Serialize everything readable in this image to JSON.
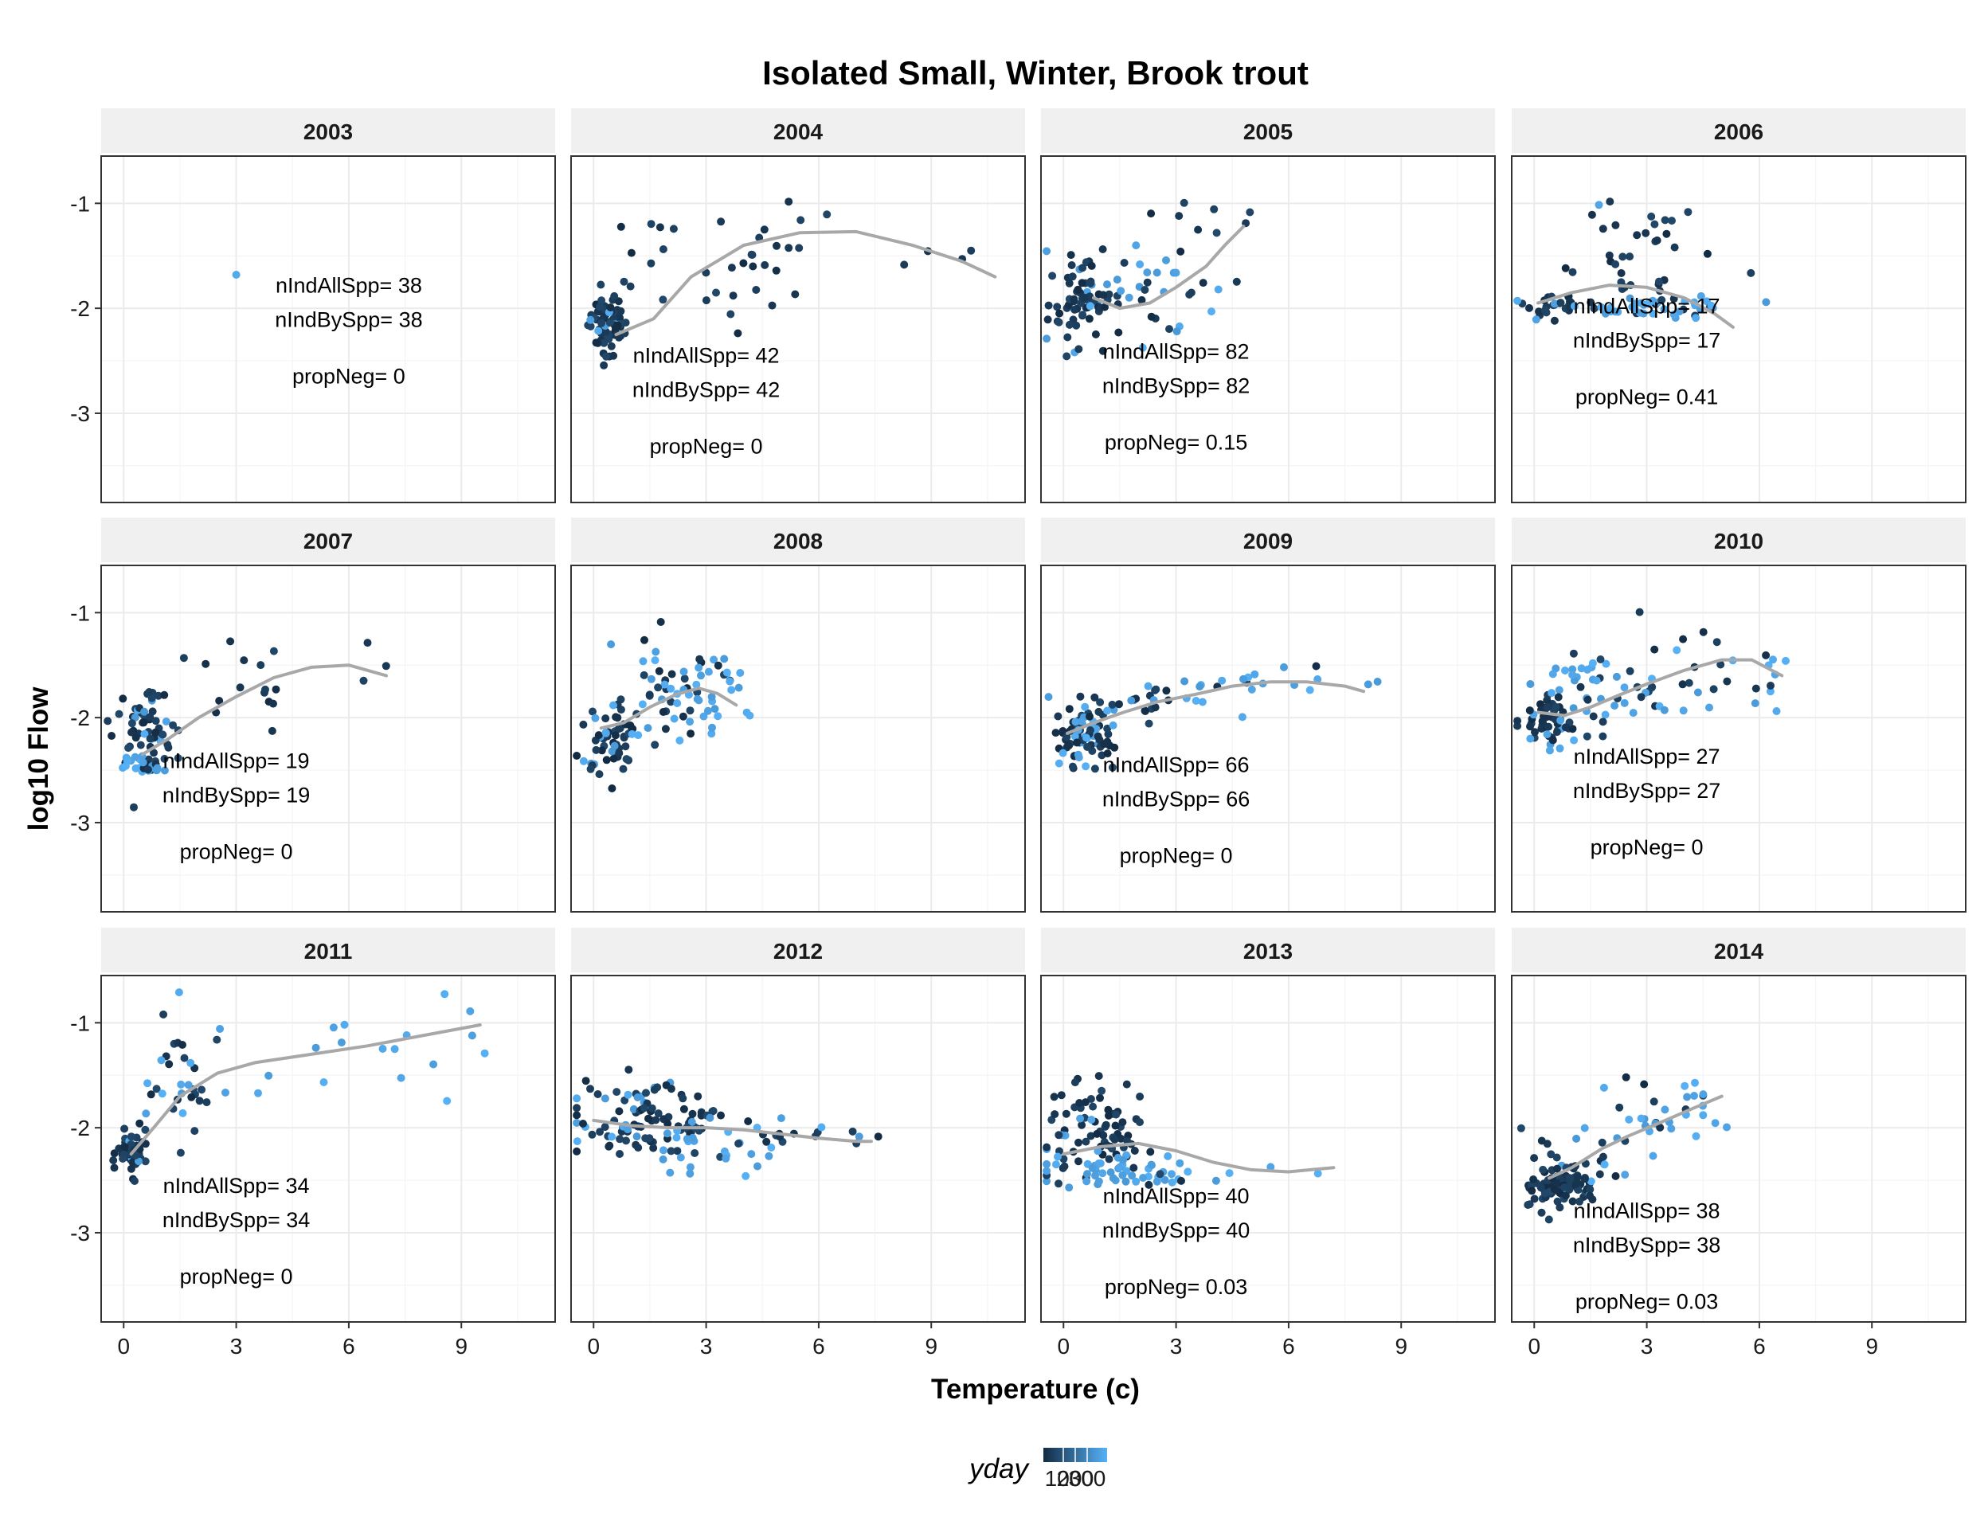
{
  "chart_data": {
    "type": "scatter",
    "title": "Isolated Small, Winter, Brook trout",
    "xlabel": "Temperature (c)",
    "ylabel": "log10 Flow",
    "xlim": [
      -0.6,
      11.5
    ],
    "ylim": [
      -3.85,
      -0.55
    ],
    "x_ticks": [
      0,
      3,
      6,
      9
    ],
    "y_ticks": [
      -1,
      -2,
      -3
    ],
    "grid": true,
    "legend": {
      "title": "yday",
      "placement": "bottom",
      "tick_labels": [
        "100",
        "200",
        "300"
      ],
      "low_color": "#132B43",
      "high_color": "#56B1F7"
    },
    "colors": {
      "point_dark": "#132B43",
      "point_light": "#56B1F7",
      "smooth": "#A8A8A8",
      "strip_bg": "#F0F0F0",
      "panel_border": "#333333",
      "grid": "#EBEBEB"
    },
    "panels": [
      {
        "year": "2003",
        "labels": [
          "nIndAllSpp= 38",
          "nIndBySpp= 38",
          "propNeg= 0"
        ],
        "label_x": 6.0,
        "label_y": -1.85,
        "clusters": [
          {
            "cx": 3.0,
            "cy": -1.68,
            "sx": 0,
            "sy": 0,
            "n": 1,
            "p": 1
          }
        ],
        "smooth": []
      },
      {
        "year": "2004",
        "labels": [
          "nIndAllSpp= 42",
          "nIndBySpp= 42",
          "propNeg= 0"
        ],
        "label_x": 3.0,
        "label_y": -2.52,
        "clusters": [
          {
            "cx": 0.35,
            "cy": -2.15,
            "sx": 0.25,
            "sy": 0.15,
            "n": 70,
            "p": 0.05
          },
          {
            "cx": 3.5,
            "cy": -1.55,
            "sx": 1.8,
            "sy": 0.3,
            "n": 35,
            "p": 0.05
          },
          {
            "cx": 9.8,
            "cy": -1.5,
            "sx": 0.7,
            "sy": 0.1,
            "n": 4,
            "p": 0
          }
        ],
        "smooth": [
          [
            0.6,
            -2.25
          ],
          [
            1.6,
            -2.1
          ],
          [
            2.6,
            -1.7
          ],
          [
            4.0,
            -1.4
          ],
          [
            5.5,
            -1.28
          ],
          [
            7.0,
            -1.27
          ],
          [
            8.5,
            -1.4
          ],
          [
            9.8,
            -1.55
          ],
          [
            10.7,
            -1.7
          ]
        ]
      },
      {
        "year": "2005",
        "labels": [
          "nIndAllSpp= 82",
          "nIndBySpp= 82",
          "propNeg= 0.15"
        ],
        "label_x": 3.0,
        "label_y": -2.48,
        "clusters": [
          {
            "cx": 0.6,
            "cy": -1.95,
            "sx": 0.5,
            "sy": 0.22,
            "n": 70,
            "p": 0.1
          },
          {
            "cx": 2.5,
            "cy": -1.85,
            "sx": 1.0,
            "sy": 0.2,
            "n": 30,
            "p": 0.6
          },
          {
            "cx": 3.6,
            "cy": -1.25,
            "sx": 0.7,
            "sy": 0.25,
            "n": 10,
            "p": 0.1
          }
        ],
        "smooth": [
          [
            0.8,
            -1.9
          ],
          [
            1.5,
            -2.0
          ],
          [
            2.3,
            -1.95
          ],
          [
            3.0,
            -1.8
          ],
          [
            3.8,
            -1.6
          ],
          [
            4.3,
            -1.4
          ],
          [
            4.8,
            -1.22
          ]
        ]
      },
      {
        "year": "2006",
        "labels": [
          "nIndAllSpp= 17",
          "nIndBySpp= 17",
          "propNeg= 0.41"
        ],
        "label_x": 3.0,
        "label_y": -2.05,
        "clusters": [
          {
            "cx": 0.5,
            "cy": -1.95,
            "sx": 0.4,
            "sy": 0.08,
            "n": 25,
            "p": 0.2
          },
          {
            "cx": 2.5,
            "cy": -1.55,
            "sx": 1.0,
            "sy": 0.3,
            "n": 40,
            "p": 0.1
          },
          {
            "cx": 3.0,
            "cy": -1.98,
            "sx": 1.3,
            "sy": 0.05,
            "n": 40,
            "p": 0.9
          }
        ],
        "smooth": [
          [
            0.1,
            -1.95
          ],
          [
            1.0,
            -1.85
          ],
          [
            2.0,
            -1.78
          ],
          [
            3.0,
            -1.8
          ],
          [
            4.0,
            -1.9
          ],
          [
            4.8,
            -2.05
          ],
          [
            5.3,
            -2.18
          ]
        ]
      },
      {
        "year": "2007",
        "labels": [
          "nIndAllSpp= 19",
          "nIndBySpp= 19",
          "propNeg= 0"
        ],
        "label_x": 3.0,
        "label_y": -2.48,
        "clusters": [
          {
            "cx": 0.5,
            "cy": -2.05,
            "sx": 0.4,
            "sy": 0.2,
            "n": 60,
            "p": 0.1
          },
          {
            "cx": 0.6,
            "cy": -2.48,
            "sx": 0.3,
            "sy": 0.06,
            "n": 25,
            "p": 0.9
          },
          {
            "cx": 3.5,
            "cy": -1.7,
            "sx": 1.2,
            "sy": 0.25,
            "n": 15,
            "p": 0.05
          },
          {
            "cx": 6.5,
            "cy": -1.5,
            "sx": 0.4,
            "sy": 0.1,
            "n": 3,
            "p": 0
          }
        ],
        "smooth": [
          [
            0.5,
            -2.35
          ],
          [
            1.2,
            -2.2
          ],
          [
            2.0,
            -2.0
          ],
          [
            3.0,
            -1.8
          ],
          [
            4.0,
            -1.62
          ],
          [
            5.0,
            -1.52
          ],
          [
            6.0,
            -1.5
          ],
          [
            7.0,
            -1.6
          ]
        ]
      },
      {
        "year": "2008",
        "labels": [],
        "label_x": 0,
        "label_y": 0,
        "clusters": [
          {
            "cx": 0.5,
            "cy": -2.15,
            "sx": 0.4,
            "sy": 0.18,
            "n": 60,
            "p": 0.15
          },
          {
            "cx": 2.0,
            "cy": -1.75,
            "sx": 0.8,
            "sy": 0.28,
            "n": 45,
            "p": 0.4
          },
          {
            "cx": 3.2,
            "cy": -1.85,
            "sx": 0.5,
            "sy": 0.2,
            "n": 25,
            "p": 0.8
          }
        ],
        "smooth": [
          [
            0.2,
            -2.1
          ],
          [
            0.8,
            -2.05
          ],
          [
            1.5,
            -1.9
          ],
          [
            2.2,
            -1.78
          ],
          [
            2.8,
            -1.72
          ],
          [
            3.3,
            -1.77
          ],
          [
            3.8,
            -1.88
          ]
        ]
      },
      {
        "year": "2009",
        "labels": [
          "nIndAllSpp= 66",
          "nIndBySpp= 66",
          "propNeg= 0"
        ],
        "label_x": 3.0,
        "label_y": -2.52,
        "clusters": [
          {
            "cx": 0.5,
            "cy": -2.15,
            "sx": 0.4,
            "sy": 0.15,
            "n": 80,
            "p": 0.25
          },
          {
            "cx": 2.0,
            "cy": -1.85,
            "sx": 0.8,
            "sy": 0.12,
            "n": 25,
            "p": 0.3
          },
          {
            "cx": 5.5,
            "cy": -1.68,
            "sx": 1.6,
            "sy": 0.1,
            "n": 20,
            "p": 0.9
          }
        ],
        "smooth": [
          [
            0.1,
            -2.15
          ],
          [
            0.8,
            -2.05
          ],
          [
            1.6,
            -1.95
          ],
          [
            2.5,
            -1.85
          ],
          [
            3.5,
            -1.78
          ],
          [
            4.5,
            -1.7
          ],
          [
            5.5,
            -1.66
          ],
          [
            6.5,
            -1.66
          ],
          [
            7.5,
            -1.7
          ],
          [
            8.0,
            -1.75
          ]
        ]
      },
      {
        "year": "2010",
        "labels": [
          "nIndAllSpp= 27",
          "nIndBySpp= 27",
          "propNeg= 0"
        ],
        "label_x": 3.0,
        "label_y": -2.44,
        "clusters": [
          {
            "cx": 0.5,
            "cy": -2.05,
            "sx": 0.35,
            "sy": 0.12,
            "n": 55,
            "p": 0.1
          },
          {
            "cx": 1.2,
            "cy": -1.7,
            "sx": 0.6,
            "sy": 0.2,
            "n": 30,
            "p": 0.8
          },
          {
            "cx": 3.5,
            "cy": -1.6,
            "sx": 1.2,
            "sy": 0.22,
            "n": 25,
            "p": 0.2
          },
          {
            "cx": 3.2,
            "cy": -1.88,
            "sx": 1.2,
            "sy": 0.08,
            "n": 12,
            "p": 0.9
          },
          {
            "cx": 6.0,
            "cy": -1.5,
            "sx": 0.4,
            "sy": 0.25,
            "n": 8,
            "p": 0.6
          }
        ],
        "smooth": [
          [
            0.1,
            -1.95
          ],
          [
            0.8,
            -1.98
          ],
          [
            1.5,
            -1.9
          ],
          [
            2.3,
            -1.78
          ],
          [
            3.0,
            -1.68
          ],
          [
            4.0,
            -1.55
          ],
          [
            5.0,
            -1.45
          ],
          [
            5.8,
            -1.45
          ],
          [
            6.6,
            -1.6
          ]
        ]
      },
      {
        "year": "2011",
        "labels": [
          "nIndAllSpp= 34",
          "nIndBySpp= 34",
          "propNeg= 0"
        ],
        "label_x": 3.0,
        "label_y": -2.62,
        "clusters": [
          {
            "cx": 0.25,
            "cy": -2.25,
            "sx": 0.2,
            "sy": 0.1,
            "n": 60,
            "p": 0.05
          },
          {
            "cx": 1.8,
            "cy": -1.6,
            "sx": 0.8,
            "sy": 0.3,
            "n": 30,
            "p": 0.4
          },
          {
            "cx": 5.5,
            "cy": -1.3,
            "sx": 2.0,
            "sy": 0.3,
            "n": 20,
            "p": 0.9
          }
        ],
        "smooth": [
          [
            0.2,
            -2.25
          ],
          [
            0.8,
            -2.0
          ],
          [
            1.5,
            -1.7
          ],
          [
            2.5,
            -1.48
          ],
          [
            3.5,
            -1.38
          ],
          [
            5.0,
            -1.3
          ],
          [
            6.5,
            -1.22
          ],
          [
            8.0,
            -1.12
          ],
          [
            9.5,
            -1.02
          ]
        ]
      },
      {
        "year": "2012",
        "labels": [],
        "label_x": 0,
        "label_y": 0,
        "clusters": [
          {
            "cx": 1.5,
            "cy": -1.95,
            "sx": 1.0,
            "sy": 0.18,
            "n": 110,
            "p": 0.2
          },
          {
            "cx": 3.0,
            "cy": -2.15,
            "sx": 1.0,
            "sy": 0.12,
            "n": 20,
            "p": 0.9
          },
          {
            "cx": 5.5,
            "cy": -2.08,
            "sx": 1.0,
            "sy": 0.05,
            "n": 15,
            "p": 0.3
          }
        ],
        "smooth": [
          [
            0.0,
            -1.93
          ],
          [
            1.0,
            -1.98
          ],
          [
            2.0,
            -2.0
          ],
          [
            3.0,
            -2.0
          ],
          [
            4.0,
            -2.02
          ],
          [
            5.0,
            -2.06
          ],
          [
            6.0,
            -2.1
          ],
          [
            7.0,
            -2.13
          ],
          [
            7.4,
            -2.13
          ]
        ]
      },
      {
        "year": "2013",
        "labels": [
          "nIndAllSpp= 40",
          "nIndBySpp= 40",
          "propNeg= 0.03"
        ],
        "label_x": 3.0,
        "label_y": -2.72,
        "clusters": [
          {
            "cx": 1.0,
            "cy": -2.0,
            "sx": 0.7,
            "sy": 0.22,
            "n": 70,
            "p": 0.05
          },
          {
            "cx": 1.5,
            "cy": -2.4,
            "sx": 1.2,
            "sy": 0.1,
            "n": 60,
            "p": 0.9
          },
          {
            "cx": 5.0,
            "cy": -2.38,
            "sx": 1.0,
            "sy": 0.08,
            "n": 5,
            "p": 0.7
          }
        ],
        "smooth": [
          [
            0.0,
            -2.25
          ],
          [
            1.0,
            -2.18
          ],
          [
            2.0,
            -2.15
          ],
          [
            3.0,
            -2.22
          ],
          [
            4.0,
            -2.33
          ],
          [
            5.0,
            -2.4
          ],
          [
            6.0,
            -2.42
          ],
          [
            7.2,
            -2.38
          ]
        ]
      },
      {
        "year": "2014",
        "labels": [
          "nIndAllSpp= 38",
          "nIndBySpp= 38",
          "propNeg= 0.03"
        ],
        "label_x": 3.0,
        "label_y": -2.86,
        "clusters": [
          {
            "cx": 0.7,
            "cy": -2.55,
            "sx": 0.5,
            "sy": 0.12,
            "n": 90,
            "p": 0.05
          },
          {
            "cx": 1.8,
            "cy": -2.05,
            "sx": 0.9,
            "sy": 0.3,
            "n": 20,
            "p": 0.3
          },
          {
            "cx": 3.8,
            "cy": -1.85,
            "sx": 0.8,
            "sy": 0.15,
            "n": 25,
            "p": 0.85
          }
        ],
        "smooth": [
          [
            0.4,
            -2.48
          ],
          [
            1.0,
            -2.38
          ],
          [
            1.8,
            -2.2
          ],
          [
            2.5,
            -2.08
          ],
          [
            3.3,
            -1.96
          ],
          [
            4.2,
            -1.82
          ],
          [
            5.0,
            -1.7
          ]
        ]
      }
    ]
  }
}
